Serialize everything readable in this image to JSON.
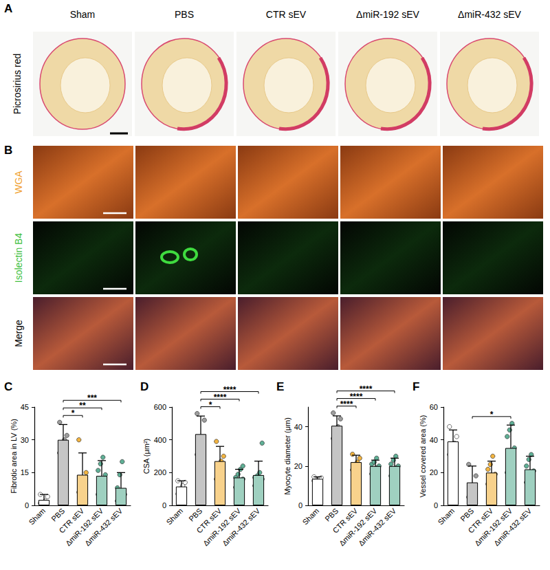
{
  "panels": {
    "A": {
      "label": "A",
      "row_label": "Picrosirius red",
      "columns": [
        "Sham",
        "PBS",
        "CTR sEV",
        "ΔmiR-192 sEV",
        "ΔmiR-432 sEV"
      ]
    },
    "B": {
      "label": "B",
      "rows": [
        {
          "label": "WGA",
          "color": "#f0a030"
        },
        {
          "label": "Isolectin B4",
          "color": "#3fbf3f"
        },
        {
          "label": "Merge",
          "color": "#000000"
        }
      ]
    }
  },
  "chart_data": [
    {
      "type": "bar",
      "panel": "C",
      "y_label": "Fibrotic area in LV (%)",
      "categories": [
        "Sham",
        "PBS",
        "CTR sEV",
        "ΔmiR-192 sEV",
        "ΔmiR-432 sEV"
      ],
      "values": [
        2.5,
        30,
        14,
        13.5,
        8
      ],
      "errors": [
        2.5,
        7,
        10,
        7,
        7
      ],
      "points": [
        [
          1,
          1,
          2,
          4,
          5
        ],
        [
          24,
          27,
          30,
          32,
          38
        ],
        [
          6,
          8,
          12,
          15,
          30
        ],
        [
          5,
          7,
          11,
          14,
          16,
          19,
          22
        ],
        [
          2,
          3,
          4,
          5,
          8,
          14,
          20
        ]
      ],
      "colors": [
        "#ffffff",
        "#9e9e9e",
        "#f3b440",
        "#5fb096",
        "#5fb096"
      ],
      "ylim": [
        0,
        45
      ],
      "yticks": [
        0,
        15,
        30,
        45
      ],
      "comparisons": [
        {
          "from": "PBS",
          "to": "CTR sEV",
          "label": "*"
        },
        {
          "from": "PBS",
          "to": "ΔmiR-192 sEV",
          "label": "**"
        },
        {
          "from": "PBS",
          "to": "ΔmiR-432 sEV",
          "label": "***"
        }
      ]
    },
    {
      "type": "bar",
      "panel": "D",
      "y_label": "CSA (μm²)",
      "categories": [
        "Sham",
        "PBS",
        "CTR sEV",
        "ΔmiR-192 sEV",
        "ΔmiR-432 sEV"
      ],
      "values": [
        115,
        435,
        270,
        170,
        185
      ],
      "errors": [
        35,
        110,
        90,
        50,
        85
      ],
      "points": [
        [
          70,
          100,
          120,
          140,
          150
        ],
        [
          310,
          360,
          410,
          520,
          560
        ],
        [
          160,
          210,
          270,
          300,
          390
        ],
        [
          110,
          130,
          150,
          160,
          170,
          190,
          220,
          240
        ],
        [
          120,
          130,
          150,
          160,
          170,
          180,
          200,
          380
        ]
      ],
      "colors": [
        "#ffffff",
        "#9e9e9e",
        "#f3b440",
        "#5fb096",
        "#5fb096"
      ],
      "ylim": [
        0,
        600
      ],
      "yticks": [
        0,
        200,
        400,
        600
      ],
      "comparisons": [
        {
          "from": "PBS",
          "to": "CTR sEV",
          "label": "*"
        },
        {
          "from": "PBS",
          "to": "ΔmiR-192 sEV",
          "label": "****"
        },
        {
          "from": "PBS",
          "to": "ΔmiR-432 sEV",
          "label": "****"
        }
      ]
    },
    {
      "type": "bar",
      "panel": "E",
      "y_label": "Myocyte diameter (μm)",
      "categories": [
        "Sham",
        "PBS",
        "CTR sEV",
        "ΔmiR-192 sEV",
        "ΔmiR-432 sEV"
      ],
      "values": [
        13.5,
        40.5,
        22,
        20,
        20
      ],
      "errors": [
        1,
        5,
        3.5,
        3,
        4
      ],
      "points": [
        [
          12.5,
          13,
          13.5,
          14,
          14.5
        ],
        [
          34,
          37,
          40,
          44,
          47
        ],
        [
          18,
          20,
          22,
          24,
          26
        ],
        [
          16,
          18,
          19,
          20,
          21,
          22,
          24
        ],
        [
          15,
          17,
          19,
          20,
          21,
          23,
          25
        ]
      ],
      "colors": [
        "#ffffff",
        "#9e9e9e",
        "#f3b440",
        "#5fb096",
        "#5fb096"
      ],
      "ylim": [
        0,
        50
      ],
      "yticks": [
        0,
        20,
        40
      ],
      "comparisons": [
        {
          "from": "PBS",
          "to": "CTR sEV",
          "label": "****"
        },
        {
          "from": "PBS",
          "to": "ΔmiR-192 sEV",
          "label": "****"
        },
        {
          "from": "PBS",
          "to": "ΔmiR-432 sEV",
          "label": "****"
        }
      ]
    },
    {
      "type": "bar",
      "panel": "F",
      "y_label": "Vessel covered area (%)",
      "categories": [
        "Sham",
        "PBS",
        "CTR sEV",
        "ΔmiR-192 sEV",
        "ΔmiR-432 sEV"
      ],
      "values": [
        39,
        14,
        20,
        35,
        22
      ],
      "errors": [
        7,
        10,
        7,
        14,
        8
      ],
      "points": [
        [
          31,
          34,
          38,
          42,
          48
        ],
        [
          5,
          7,
          12,
          18,
          25
        ],
        [
          13,
          15,
          17,
          19,
          22,
          25,
          30
        ],
        [
          20,
          24,
          30,
          35,
          42,
          46,
          50
        ],
        [
          14,
          16,
          18,
          21,
          24,
          28,
          31
        ]
      ],
      "colors": [
        "#ffffff",
        "#9e9e9e",
        "#f3b440",
        "#5fb096",
        "#5fb096"
      ],
      "ylim": [
        0,
        60
      ],
      "yticks": [
        0,
        20,
        40,
        60
      ],
      "comparisons": [
        {
          "from": "PBS",
          "to": "ΔmiR-192 sEV",
          "label": "*"
        }
      ]
    }
  ]
}
